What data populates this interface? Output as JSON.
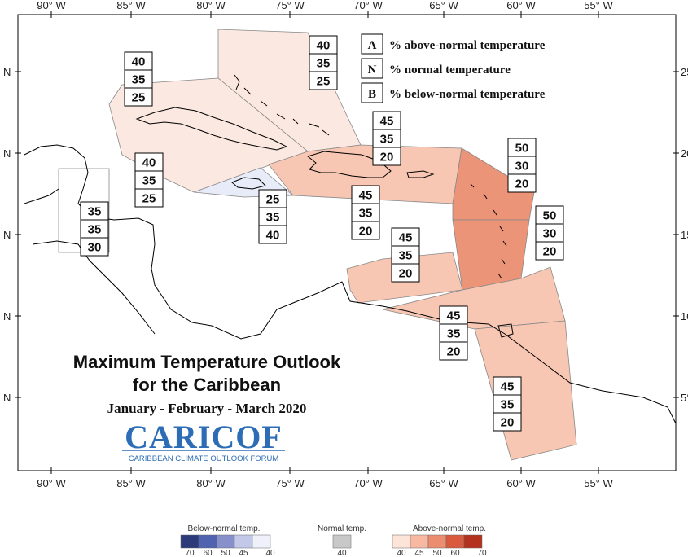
{
  "axis": {
    "top_labels": [
      "90° W",
      "85° W",
      "80° W",
      "75° W",
      "70° W",
      "65° W",
      "60° W",
      "55° W"
    ],
    "bottom_labels": [
      "90° W",
      "85° W",
      "80° W",
      "75° W",
      "70° W",
      "65° W",
      "60° W",
      "55° W"
    ],
    "left_labels": [
      "N",
      "N",
      "N",
      "N",
      "N"
    ],
    "right_labels": [
      "25",
      "20",
      "15",
      "10",
      "5°"
    ]
  },
  "legend": {
    "items": [
      {
        "letter": "A",
        "text": "% above-normal temperature"
      },
      {
        "letter": "N",
        "text": "% normal temperature"
      },
      {
        "letter": "B",
        "text": "% below-normal temperature"
      }
    ]
  },
  "regions": [
    {
      "name": "bahamas",
      "values": [
        "40",
        "35",
        "25"
      ],
      "fill": "#fbe8e0"
    },
    {
      "name": "cuba",
      "values": [
        "40",
        "35",
        "25"
      ],
      "fill": "#fbe8e0"
    },
    {
      "name": "cayman",
      "values": [
        "40",
        "35",
        "25"
      ],
      "fill": "#fbe8e0"
    },
    {
      "name": "belize",
      "values": [
        "35",
        "35",
        "30"
      ],
      "fill": "#ffffff"
    },
    {
      "name": "jamaica",
      "values": [
        "25",
        "35",
        "40"
      ],
      "fill": "#e8ecf8"
    },
    {
      "name": "hispaniola-north",
      "values": [
        "45",
        "35",
        "20"
      ],
      "fill": "#f7c7b3"
    },
    {
      "name": "hispaniola-south",
      "values": [
        "45",
        "35",
        "20"
      ],
      "fill": "#f7c7b3"
    },
    {
      "name": "leeward",
      "values": [
        "50",
        "30",
        "20"
      ],
      "fill": "#ec9478"
    },
    {
      "name": "windward",
      "values": [
        "50",
        "30",
        "20"
      ],
      "fill": "#ec9478"
    },
    {
      "name": "abc-islands",
      "values": [
        "45",
        "35",
        "20"
      ],
      "fill": "#f7c7b3"
    },
    {
      "name": "trinidad",
      "values": [
        "45",
        "35",
        "20"
      ],
      "fill": "#f7c7b3"
    },
    {
      "name": "guianas",
      "values": [
        "45",
        "35",
        "20"
      ],
      "fill": "#f7c7b3"
    }
  ],
  "title": {
    "line1": "Maximum Temperature Outlook",
    "line2": "for the Caribbean",
    "period": "January - February - March 2020"
  },
  "logo": {
    "name": "CARICOF",
    "tagline": "CARIBBEAN CLIMATE OUTLOOK FORUM"
  },
  "scale": {
    "below": {
      "label": "Below-normal temp.",
      "ticks": [
        "70",
        "60",
        "50",
        "45",
        "40"
      ],
      "colors": [
        "#2c3a7a",
        "#4f63b0",
        "#8890cc",
        "#c3c8e8",
        "#eef0fa"
      ]
    },
    "normal": {
      "label": "Normal temp.",
      "ticks": [
        "40"
      ],
      "color": "#c8c8c8"
    },
    "above": {
      "label": "Above-normal temp.",
      "ticks": [
        "40",
        "45",
        "50",
        "60",
        "70"
      ],
      "colors": [
        "#fde4d8",
        "#f7b9a2",
        "#ec8d70",
        "#d95a3e",
        "#b3321f"
      ]
    }
  }
}
